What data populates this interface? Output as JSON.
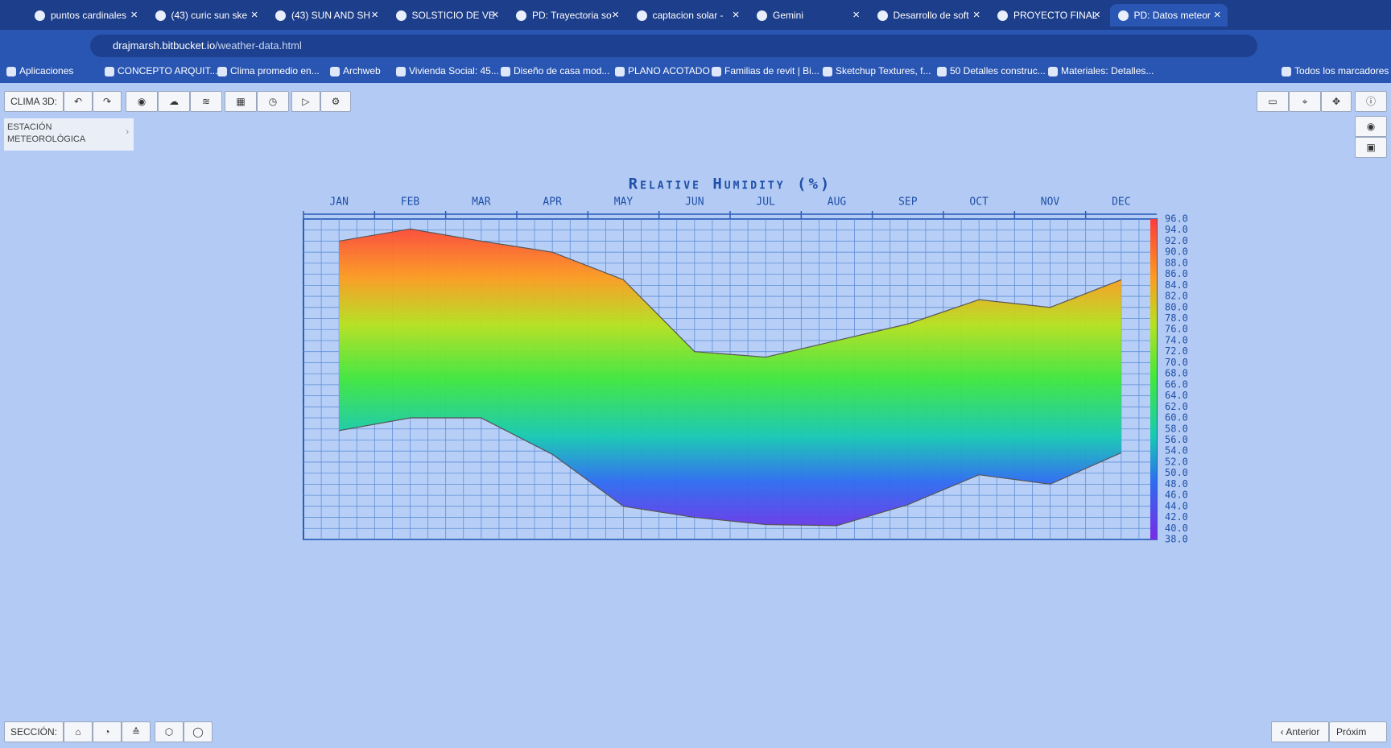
{
  "browser": {
    "tabs": [
      "puntos cardinales",
      "(43) curic sun ske",
      "(43) SUN AND SH",
      "SOLSTICIO DE VE",
      "PD: Trayectoria so",
      "captacion solar - ",
      "Gemini",
      "Desarrollo de soft",
      "PROYECTO FINAL",
      "PD: Datos meteor"
    ],
    "url_host": "drajmarsh.bitbucket.io",
    "url_path": "/weather-data.html",
    "bookmarks": [
      "Aplicaciones",
      "CONCEPTO ARQUIT...",
      "Clima promedio en...",
      "Archweb",
      "Vivienda Social: 45...",
      "Diseño de casa mod...",
      "PLANO ACOTADO",
      "Familias de revit | Bi...",
      "Sketchup Textures, f...",
      "50 Detalles construc...",
      "Materiales: Detalles..."
    ],
    "all_bookmarks": "Todos los marcadores"
  },
  "app": {
    "toolbar_label": "CLIMA 3D:",
    "panel": "ESTACIÓN METEOROLÓGICA",
    "section_label": "SECCIÓN:",
    "prev": "Anterior",
    "next": "Próxim"
  },
  "chart_data": {
    "type": "band",
    "title": "Relative Humidity (%)",
    "categories": [
      "JAN",
      "FEB",
      "MAR",
      "APR",
      "MAY",
      "JUN",
      "JUL",
      "AUG",
      "SEP",
      "OCT",
      "NOV",
      "DEC"
    ],
    "series": [
      {
        "color": "#555555",
        "values": [
          92,
          94.2,
          92,
          90,
          85,
          72,
          71,
          74,
          77,
          81.4,
          80,
          85
        ]
      },
      {
        "color": "#555555",
        "values": [
          57.7,
          60,
          60,
          53.4,
          44,
          42,
          40.7,
          40.5,
          44.3,
          49.7,
          48,
          53.7
        ]
      }
    ],
    "ylim": [
      38,
      96
    ],
    "yticks": [
      {
        "value": 38,
        "label": "38.0"
      },
      {
        "value": 40,
        "label": "40.0"
      },
      {
        "value": 42,
        "label": "42.0"
      },
      {
        "value": 44,
        "label": "44.0"
      },
      {
        "value": 46,
        "label": "46.0"
      },
      {
        "value": 48,
        "label": "48.0"
      },
      {
        "value": 50,
        "label": "50.0"
      },
      {
        "value": 52,
        "label": "52.0"
      },
      {
        "value": 54,
        "label": "54.0"
      },
      {
        "value": 56,
        "label": "56.0"
      },
      {
        "value": 58,
        "label": "58.0"
      },
      {
        "value": 60,
        "label": "60.0"
      },
      {
        "value": 62,
        "label": "62.0"
      },
      {
        "value": 64,
        "label": "64.0"
      },
      {
        "value": 66,
        "label": "66.0"
      },
      {
        "value": 68,
        "label": "68.0"
      },
      {
        "value": 70,
        "label": "70.0"
      },
      {
        "value": 72,
        "label": "72.0"
      },
      {
        "value": 74,
        "label": "74.0"
      },
      {
        "value": 76,
        "label": "76.0"
      },
      {
        "value": 78,
        "label": "78.0"
      },
      {
        "value": 80,
        "label": "80.0"
      },
      {
        "value": 82,
        "label": "82.0"
      },
      {
        "value": 84,
        "label": "84.0"
      },
      {
        "value": 86,
        "label": "86.0"
      },
      {
        "value": 88,
        "label": "88.0"
      },
      {
        "value": 90,
        "label": "90.0"
      },
      {
        "value": 92,
        "label": "92.0"
      },
      {
        "value": 94,
        "label": "94.0"
      },
      {
        "value": 96,
        "label": "96.0"
      }
    ],
    "grid": true
  }
}
